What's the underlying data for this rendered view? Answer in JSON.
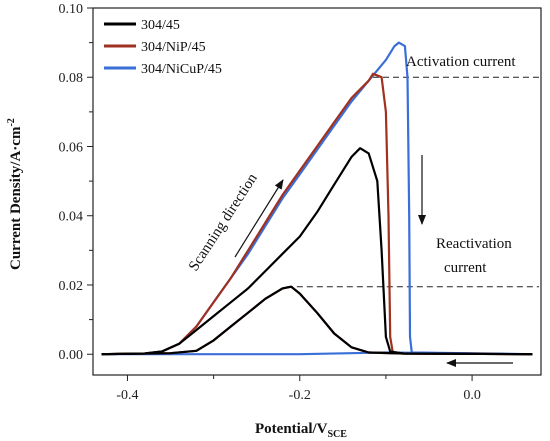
{
  "chart_data": {
    "type": "line",
    "xlabel_main": "Potential/V",
    "xlabel_sub": "SCE",
    "ylabel": "Current Density/A·cm",
    "ylabel_sup": "-2",
    "xlim": [
      -0.44,
      0.08
    ],
    "ylim": [
      -0.006,
      0.1
    ],
    "xticks": [
      -0.4,
      -0.2,
      0.0
    ],
    "xtick_labels": [
      "-0.4",
      "-0.2",
      "0.0"
    ],
    "xticks_minor": [
      -0.3,
      -0.1
    ],
    "yticks": [
      0.0,
      0.02,
      0.04,
      0.06,
      0.08,
      0.1
    ],
    "ytick_labels": [
      "0.00",
      "0.02",
      "0.04",
      "0.06",
      "0.08",
      "0.10"
    ],
    "legend_position": "top-left",
    "series": [
      {
        "name": "304/45",
        "color": "#000000",
        "forward": [
          [
            -0.43,
            0.0
          ],
          [
            -0.38,
            0.0002
          ],
          [
            -0.36,
            0.0008
          ],
          [
            -0.34,
            0.003
          ],
          [
            -0.32,
            0.007
          ],
          [
            -0.3,
            0.011
          ],
          [
            -0.28,
            0.015
          ],
          [
            -0.26,
            0.019
          ],
          [
            -0.24,
            0.024
          ],
          [
            -0.22,
            0.029
          ],
          [
            -0.2,
            0.034
          ],
          [
            -0.18,
            0.041
          ],
          [
            -0.16,
            0.049
          ],
          [
            -0.14,
            0.057
          ],
          [
            -0.13,
            0.0595
          ],
          [
            -0.12,
            0.058
          ],
          [
            -0.11,
            0.05
          ],
          [
            -0.105,
            0.03
          ],
          [
            -0.1,
            0.005
          ],
          [
            -0.095,
            0.0008
          ],
          [
            -0.08,
            0.0002
          ],
          [
            0.07,
            0.0
          ]
        ],
        "reverse": [
          [
            0.07,
            0.0
          ],
          [
            -0.08,
            0.0002
          ],
          [
            -0.12,
            0.0005
          ],
          [
            -0.14,
            0.002
          ],
          [
            -0.16,
            0.006
          ],
          [
            -0.18,
            0.012
          ],
          [
            -0.2,
            0.0175
          ],
          [
            -0.21,
            0.0195
          ],
          [
            -0.22,
            0.019
          ],
          [
            -0.24,
            0.016
          ],
          [
            -0.26,
            0.012
          ],
          [
            -0.28,
            0.008
          ],
          [
            -0.3,
            0.004
          ],
          [
            -0.32,
            0.001
          ],
          [
            -0.35,
            0.0003
          ],
          [
            -0.43,
            0.0
          ]
        ]
      },
      {
        "name": "304/NiP/45",
        "color": "#a03020",
        "forward": [
          [
            -0.43,
            0.0
          ],
          [
            -0.38,
            0.0002
          ],
          [
            -0.36,
            0.0008
          ],
          [
            -0.34,
            0.003
          ],
          [
            -0.32,
            0.008
          ],
          [
            -0.3,
            0.015
          ],
          [
            -0.28,
            0.022
          ],
          [
            -0.26,
            0.03
          ],
          [
            -0.24,
            0.038
          ],
          [
            -0.22,
            0.046
          ],
          [
            -0.2,
            0.053
          ],
          [
            -0.18,
            0.06
          ],
          [
            -0.16,
            0.067
          ],
          [
            -0.14,
            0.074
          ],
          [
            -0.12,
            0.079
          ],
          [
            -0.115,
            0.081
          ],
          [
            -0.105,
            0.08
          ],
          [
            -0.1,
            0.07
          ],
          [
            -0.097,
            0.04
          ],
          [
            -0.095,
            0.005
          ],
          [
            -0.092,
            0.0005
          ],
          [
            -0.08,
            0.0002
          ],
          [
            0.07,
            0.0
          ]
        ],
        "reverse": [
          [
            0.07,
            0.0
          ],
          [
            -0.08,
            0.0002
          ],
          [
            -0.12,
            0.0005
          ],
          [
            -0.14,
            0.002
          ],
          [
            -0.16,
            0.006
          ],
          [
            -0.18,
            0.012
          ],
          [
            -0.2,
            0.0175
          ],
          [
            -0.21,
            0.0195
          ],
          [
            -0.22,
            0.019
          ],
          [
            -0.24,
            0.016
          ],
          [
            -0.26,
            0.012
          ],
          [
            -0.28,
            0.008
          ],
          [
            -0.3,
            0.004
          ],
          [
            -0.32,
            0.001
          ],
          [
            -0.35,
            0.0003
          ],
          [
            -0.43,
            0.0
          ]
        ]
      },
      {
        "name": "304/NiCuP/45",
        "color": "#3a6fd8",
        "forward": [
          [
            -0.43,
            0.0
          ],
          [
            -0.38,
            0.0002
          ],
          [
            -0.36,
            0.0008
          ],
          [
            -0.34,
            0.003
          ],
          [
            -0.32,
            0.008
          ],
          [
            -0.3,
            0.015
          ],
          [
            -0.28,
            0.022
          ],
          [
            -0.26,
            0.029
          ],
          [
            -0.24,
            0.037
          ],
          [
            -0.22,
            0.045
          ],
          [
            -0.2,
            0.052
          ],
          [
            -0.18,
            0.059
          ],
          [
            -0.16,
            0.066
          ],
          [
            -0.14,
            0.073
          ],
          [
            -0.12,
            0.079
          ],
          [
            -0.1,
            0.085
          ],
          [
            -0.09,
            0.089
          ],
          [
            -0.085,
            0.09
          ],
          [
            -0.078,
            0.089
          ],
          [
            -0.075,
            0.08
          ],
          [
            -0.073,
            0.04
          ],
          [
            -0.072,
            0.005
          ],
          [
            -0.07,
            0.0005
          ],
          [
            0.07,
            0.0
          ]
        ],
        "reverse": [
          [
            0.07,
            0.0
          ],
          [
            -0.1,
            0.0005
          ],
          [
            -0.2,
            0.0
          ],
          [
            -0.3,
            0.0
          ],
          [
            -0.43,
            0.0
          ]
        ]
      }
    ],
    "annotations": {
      "activation_label": "Activation current",
      "activation_level": 0.08,
      "reactivation_label_1": "Reactivation",
      "reactivation_label_2": "current",
      "reactivation_level": 0.0195,
      "scanning_label": "Scanning direction"
    }
  }
}
